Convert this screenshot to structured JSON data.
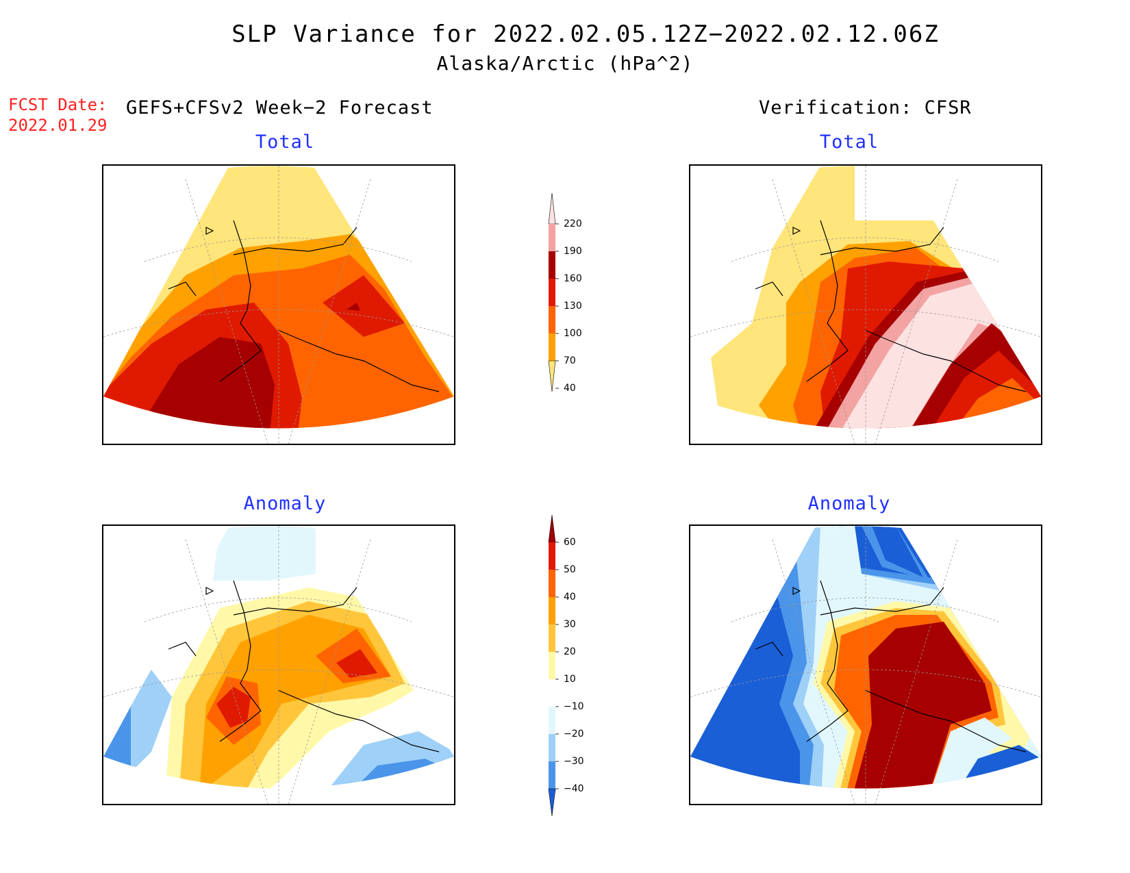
{
  "title": {
    "line1": "SLP Variance for 2022.02.05.12Z−2022.02.12.06Z",
    "line2": "Alaska/Arctic (hPa^2)"
  },
  "fcst_date": {
    "label": "FCST Date:",
    "value": "2022.01.29"
  },
  "headers": {
    "forecast": "GEFS+CFSv2 Week−2 Forecast",
    "verification": "Verification: CFSR"
  },
  "panels": {
    "forecast_total": {
      "subtitle": "Total"
    },
    "verification_total": {
      "subtitle": "Total"
    },
    "forecast_anomaly": {
      "subtitle": "Anomaly"
    },
    "verification_anomaly": {
      "subtitle": "Anomaly"
    }
  },
  "colorbar_total": {
    "labels": [
      "40",
      "70",
      "100",
      "130",
      "160",
      "190",
      "220"
    ],
    "colors": [
      "#ffe57a",
      "#ffa100",
      "#ff6400",
      "#e01a00",
      "#a60000",
      "#f4a3a3",
      "#fde2e2"
    ]
  },
  "colorbar_anomaly": {
    "labels": [
      "−40",
      "−30",
      "−20",
      "−10",
      "10",
      "20",
      "30",
      "40",
      "50",
      "60"
    ],
    "colors": [
      "#1a5fd6",
      "#4a94ea",
      "#9fd0f7",
      "#e1f7fc",
      "#ffffff",
      "#fff8a8",
      "#ffc63c",
      "#ffa100",
      "#ff6400",
      "#e01a00",
      "#a60000"
    ]
  },
  "palette": {
    "title_red": "#ff2020",
    "subtitle_blue": "#2030ff"
  }
}
